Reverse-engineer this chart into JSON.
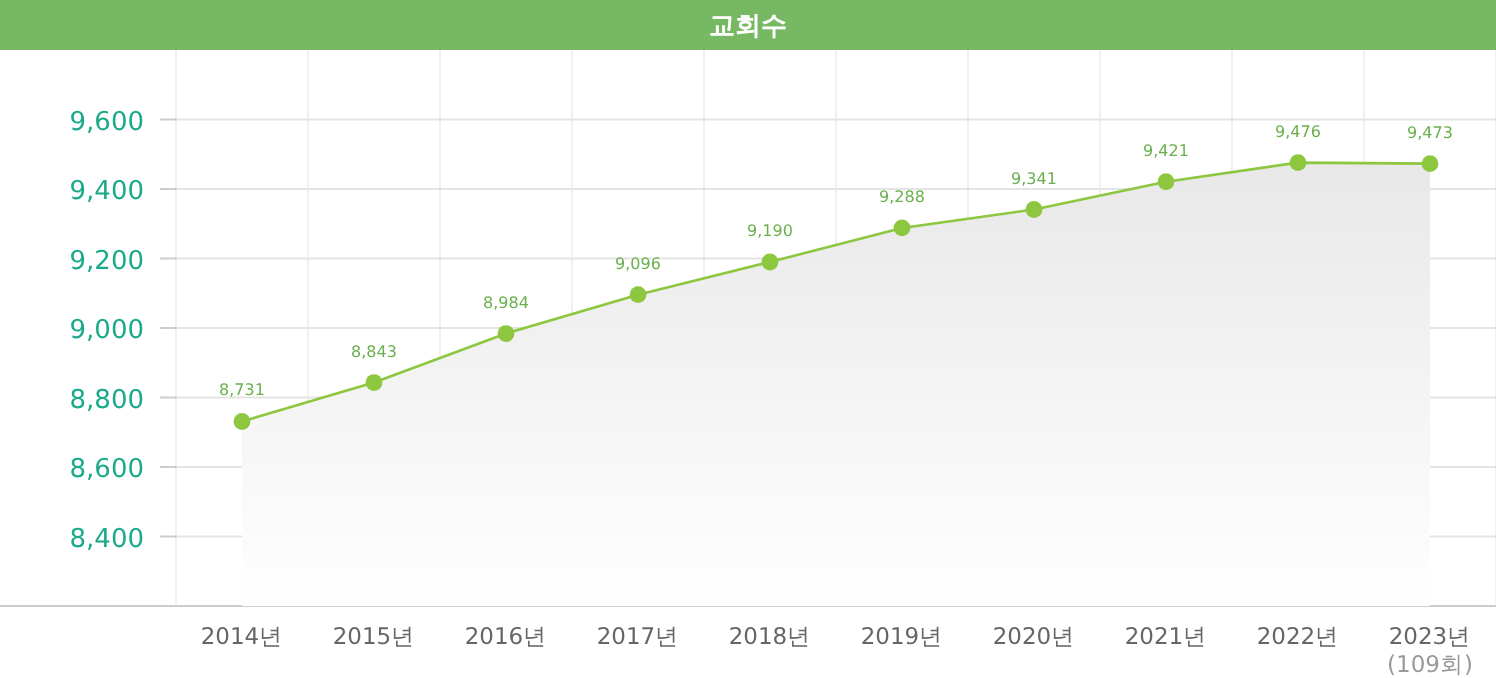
{
  "chart_data": {
    "type": "area",
    "title": "교회수",
    "categories": [
      "2014년",
      "2015년",
      "2016년",
      "2017년",
      "2018년",
      "2019년",
      "2020년",
      "2021년",
      "2022년",
      "2023년\n(109회)"
    ],
    "values": [
      8731,
      8843,
      8984,
      9096,
      9190,
      9288,
      9341,
      9421,
      9476,
      9473
    ],
    "value_labels": [
      "8,731",
      "8,843",
      "8,984",
      "9,096",
      "9,190",
      "9,288",
      "9,341",
      "9,421",
      "9,476",
      "9,473"
    ],
    "color": "#8dc63f",
    "ylim": [
      8200,
      9800
    ],
    "yticks": [
      {
        "value": 8400,
        "label": "8,400"
      },
      {
        "value": 8600,
        "label": "8,600"
      },
      {
        "value": 8800,
        "label": "8,800"
      },
      {
        "value": 9000,
        "label": "9,000"
      },
      {
        "value": 9200,
        "label": "9,200"
      },
      {
        "value": 9400,
        "label": "9,400"
      },
      {
        "value": 9600,
        "label": "9,600"
      }
    ],
    "grid": true,
    "marker": "circle"
  }
}
